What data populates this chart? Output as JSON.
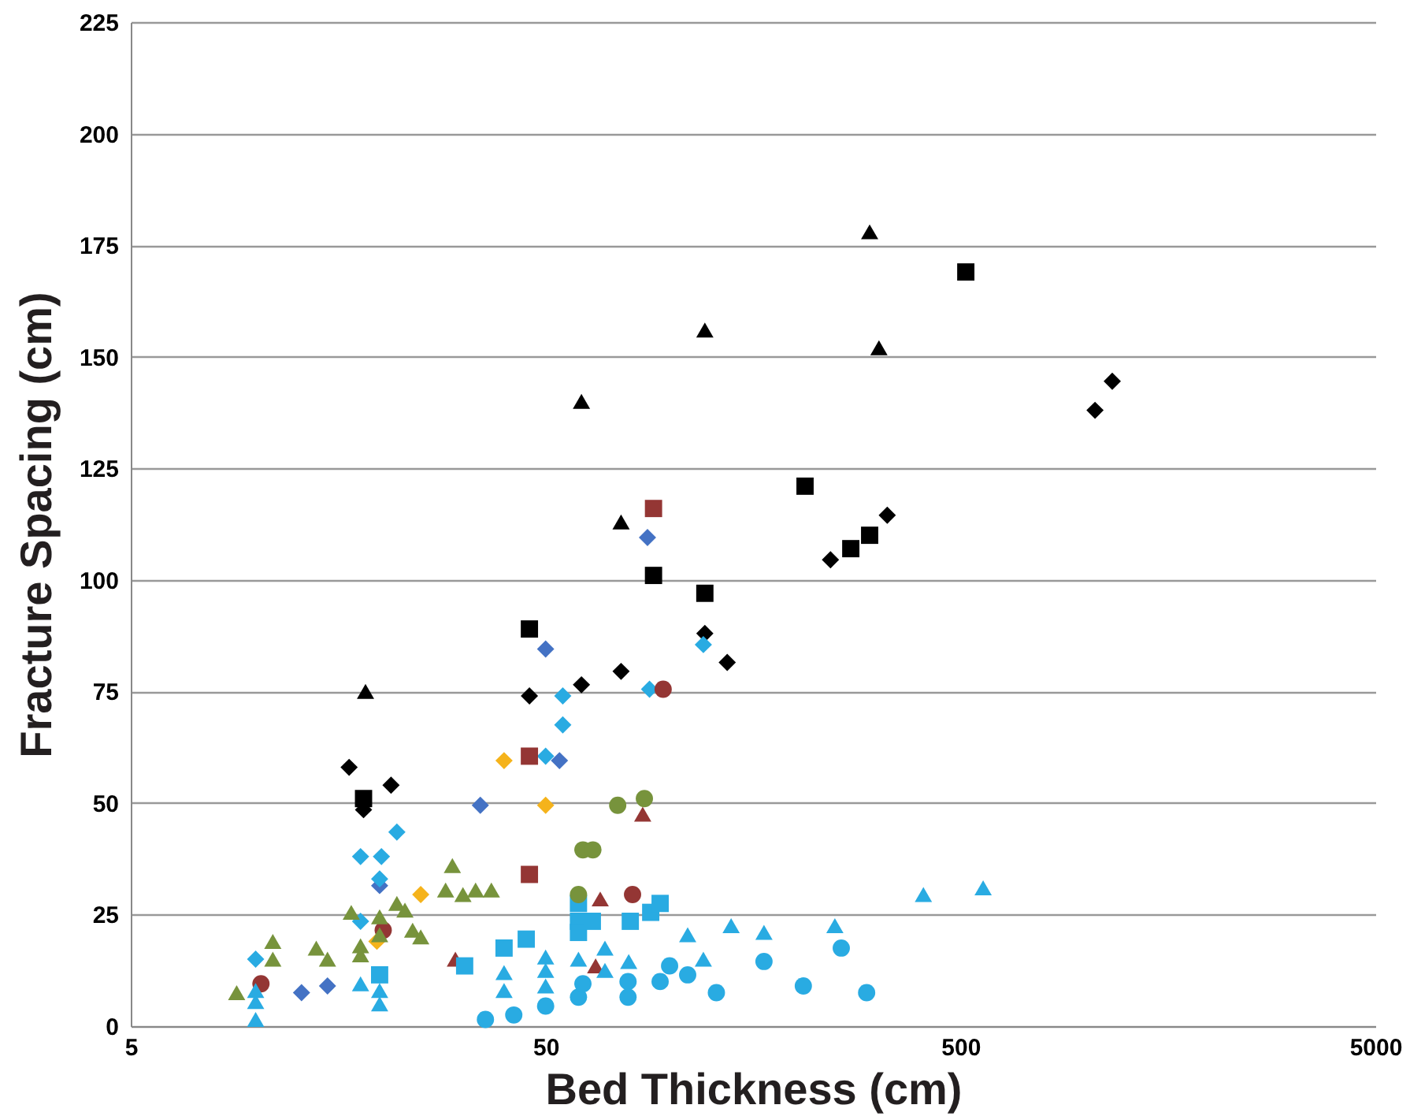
{
  "chart_data": {
    "type": "scatter",
    "xlabel": "Bed Thickness (cm)",
    "ylabel": "Fracture Spacing (cm)",
    "log": "x",
    "grid": "y",
    "xlim": [
      5,
      5000
    ],
    "xticks": [
      5,
      50,
      500,
      5000
    ],
    "ylim": [
      0,
      225
    ],
    "yticks": [
      0,
      25,
      50,
      75,
      100,
      125,
      150,
      175,
      200,
      225
    ],
    "series": [
      {
        "color": "#000000",
        "marker": "triangle",
        "x": [
          18.4,
          61,
          121,
          302,
          318,
          76
        ],
        "values": [
          75,
          140,
          156,
          178,
          152,
          113
        ]
      },
      {
        "color": "#000000",
        "marker": "square",
        "x": [
          18.2,
          45.7,
          91,
          121,
          211,
          272,
          302,
          515
        ],
        "values": [
          51,
          89,
          101,
          97,
          121,
          107,
          110,
          169
        ]
      },
      {
        "color": "#000000",
        "marker": "diamond",
        "x": [
          16.8,
          18.2,
          21.2,
          45.7,
          61,
          76,
          121,
          137,
          243,
          333,
          1055,
          1161
        ],
        "values": [
          58,
          48.5,
          54,
          74,
          76.5,
          79.5,
          88,
          81.5,
          104.5,
          114.5,
          138,
          144.5
        ]
      },
      {
        "color": "#4472c4",
        "marker": "diamond",
        "x": [
          88,
          50,
          54,
          34.8,
          19.9,
          12.9,
          14.9
        ],
        "values": [
          109.5,
          84.5,
          59.5,
          49.5,
          31.5,
          7.5,
          9
        ]
      },
      {
        "color": "#29abe2",
        "marker": "diamond",
        "x": [
          55,
          55,
          50,
          21.9,
          17.9,
          20.1,
          19.9,
          17.9,
          10,
          120,
          89
        ],
        "values": [
          74,
          67.5,
          60.5,
          43.5,
          38,
          38,
          33,
          23.5,
          15,
          85.5,
          75.5
        ]
      },
      {
        "color": "#f5b31b",
        "marker": "diamond",
        "x": [
          39.7,
          50,
          25,
          19.6
        ],
        "values": [
          59.5,
          49.5,
          29.5,
          19
        ]
      },
      {
        "color": "#943634",
        "marker": "square",
        "x": [
          91,
          45.7,
          45.7
        ],
        "values": [
          116,
          60.5,
          34
        ]
      },
      {
        "color": "#943634",
        "marker": "triangle",
        "x": [
          85.7,
          67.7,
          66,
          30.3
        ],
        "values": [
          47.5,
          28.5,
          13.5,
          15
        ]
      },
      {
        "color": "#943634",
        "marker": "circle",
        "x": [
          96,
          81,
          20.3,
          10.3
        ],
        "values": [
          75.5,
          29.5,
          21.5,
          9.5
        ]
      },
      {
        "color": "#77933c",
        "marker": "triangle",
        "x": [
          29.8,
          28.7,
          31.6,
          33.9,
          37,
          17,
          21.9,
          22.9,
          19.9,
          17.9,
          17.9,
          19.9,
          23.9,
          25,
          14,
          14.9,
          11,
          11,
          9
        ],
        "values": [
          36,
          30.5,
          29.5,
          30.5,
          30.5,
          25.5,
          27.5,
          26,
          24.5,
          18,
          16,
          20.5,
          21.5,
          20,
          17.5,
          15,
          19,
          15,
          7.5
        ]
      },
      {
        "color": "#29abe2",
        "marker": "square",
        "x": [
          19.9,
          31.9,
          39.7,
          44.9,
          60,
          60,
          60,
          64.8,
          80,
          89.6,
          94.4
        ],
        "values": [
          11.5,
          13.5,
          17.5,
          19.5,
          27.5,
          23.5,
          21,
          23.5,
          23.5,
          25.5,
          27.5
        ]
      },
      {
        "color": "#29abe2",
        "marker": "triangle",
        "x": [
          10,
          10,
          10,
          17.9,
          19.9,
          19.9,
          39.7,
          39.7,
          50,
          50,
          50,
          60,
          69.5,
          69.5,
          79.3,
          110,
          120,
          140,
          168,
          249,
          407,
          567
        ],
        "values": [
          1.5,
          5.5,
          8,
          9.5,
          8,
          5,
          12,
          8,
          15.5,
          12.5,
          9,
          15,
          17.5,
          12.5,
          14.5,
          20.5,
          15,
          22.5,
          21,
          22.5,
          29.5,
          31
        ]
      },
      {
        "color": "#29abe2",
        "marker": "circle",
        "x": [
          35.8,
          41.9,
          50,
          60,
          61.5,
          79,
          79,
          94.4,
          99.5,
          110,
          129,
          168,
          209,
          258,
          297
        ],
        "values": [
          1.5,
          2.5,
          4.5,
          6.5,
          9.5,
          10,
          6.5,
          10,
          13.5,
          11.5,
          7.5,
          14.5,
          9,
          17.5,
          7.5
        ]
      },
      {
        "color": "#77933c",
        "marker": "circle",
        "x": [
          86.5,
          74.6,
          61.5,
          65,
          60
        ],
        "values": [
          51,
          49.5,
          39.5,
          39.5,
          29.5
        ]
      }
    ]
  }
}
